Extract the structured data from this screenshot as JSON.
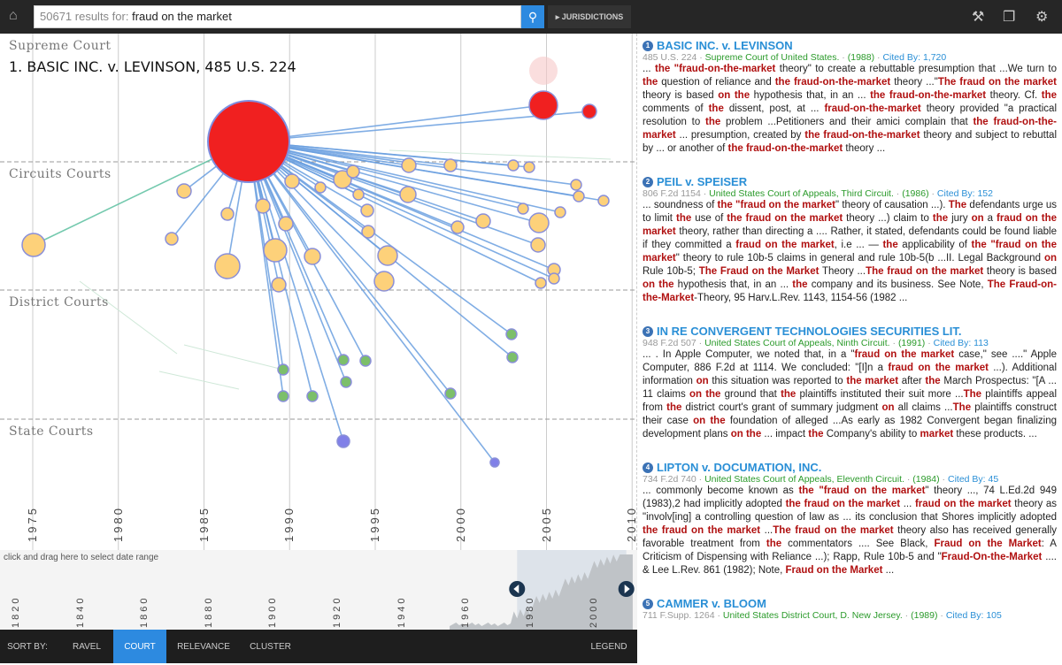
{
  "header": {
    "result_count": "50671 results for:",
    "query": "fraud on the market",
    "jurisdictions_label": "JURISDICTIONS"
  },
  "graph": {
    "lanes": [
      "Supreme Court",
      "Circuits Courts",
      "District Courts",
      "State Courts"
    ],
    "selected_title": "1. BASIC INC. v. LEVINSON, 485 U.S. 224",
    "years": [
      "1975",
      "1980",
      "1985",
      "1990",
      "1995",
      "2000",
      "2005",
      "2010"
    ]
  },
  "timeline": {
    "hint": "click and drag here to select date range",
    "years": [
      "1820",
      "1840",
      "1860",
      "1880",
      "1900",
      "1920",
      "1940",
      "1960",
      "1980",
      "2000"
    ],
    "selected_range": [
      1976,
      2010
    ]
  },
  "sort": {
    "label": "SORT BY:",
    "options": [
      "RAVEL",
      "COURT",
      "RELEVANCE",
      "CLUSTER"
    ],
    "active": "COURT",
    "legend": "LEGEND"
  },
  "colors": {
    "accent": "#2d8ae0",
    "supreme": "#f02020",
    "circuit": "#fdd17a",
    "district": "#7cbf6a",
    "state": "#8080e8",
    "highlight": "#b01010"
  },
  "results": [
    {
      "num": "1",
      "title": "BASIC INC. v. LEVINSON",
      "cite": "485 U.S. 224",
      "court": "Supreme Court of United States.",
      "year": "(1988)",
      "cited": "Cited By: 1,720",
      "snippet": [
        "... ",
        "the \"fraud-on-the-market",
        " theory\" to create a rebuttable presumption that ...We turn to ",
        "the",
        " question of reliance and ",
        "the fraud-on-the-market",
        " theory ...\"",
        "The fraud on the market",
        " theory is based ",
        "on the",
        " hypothesis that, in an ... ",
        "the fraud-on-the-market",
        " theory. Cf. ",
        "the",
        " comments of ",
        "the",
        " dissent, post, at ... ",
        "fraud-on-the-market",
        " theory provided \"a practical resolution to ",
        "the",
        " problem ...Petitioners and their amici complain that ",
        "the fraud-on-the-market",
        " ... presumption, created by ",
        "the fraud-on-the-market",
        " theory and subject to rebuttal by ... or another of ",
        "the fraud-on-the-market",
        " theory ..."
      ]
    },
    {
      "num": "2",
      "title": "PEIL v. SPEISER",
      "cite": "806 F.2d 1154",
      "court": "United States Court of Appeals, Third Circuit.",
      "year": "(1986)",
      "cited": "Cited By: 152",
      "snippet": [
        "... soundness of ",
        "the \"fraud on the market",
        "\" theory of causation ...). ",
        "The",
        " defendants urge us to limit ",
        "the",
        " use of ",
        "the fraud on the market",
        " theory ...) claim to ",
        "the",
        " jury ",
        "on",
        " a ",
        "fraud on the market",
        " theory, rather than directing a .... Rather, it stated, defendants could be found liable if they committed a ",
        "fraud on the market",
        ", i.e ... — ",
        "the",
        " applicability of ",
        "the \"fraud on the market",
        "\" theory to rule 10b-5 claims in general and rule 10b-5(b ...II. Legal Background ",
        "on",
        " Rule 10b-5; ",
        "The Fraud on the Market",
        " Theory ...",
        "The fraud on the market",
        " theory is based ",
        "on the",
        " hypothesis that, in an ... ",
        "the",
        " company and its business. See Note, ",
        "The Fraud-on-the-Market",
        "-Theory, 95 Harv.L.Rev. 1143, 1154-56 (1982 ..."
      ]
    },
    {
      "num": "3",
      "title": "IN RE CONVERGENT TECHNOLOGIES SECURITIES LIT.",
      "cite": "948 F.2d 507",
      "court": "United States Court of Appeals, Ninth Circuit.",
      "year": "(1991)",
      "cited": "Cited By: 113",
      "snippet": [
        "... . In Apple Computer, we noted that, in a \"",
        "fraud on the market",
        " case,\" see ....\" Apple Computer, 886 F.2d at 1114. We concluded: \"[I]n a ",
        "fraud on the market",
        " ...). Additional information ",
        "on",
        " this situation was reported to ",
        "the market",
        " after ",
        "the",
        " March Prospectus: \"[A ... 11 claims ",
        "on the",
        " ground that ",
        "the",
        " plaintiffs instituted their suit more ...",
        "The",
        " plaintiffs appeal from ",
        "the",
        " district court's grant of summary judgment ",
        "on",
        " all claims ...",
        "The",
        " plaintiffs construct their case ",
        "on the",
        " foundation of alleged ...As early as 1982 Convergent began finalizing development plans ",
        "on the",
        " ... impact ",
        "the",
        " Company's ability to ",
        "market",
        " these products. ..."
      ]
    },
    {
      "num": "4",
      "title": "LIPTON v. DOCUMATION, INC.",
      "cite": "734 F.2d 740",
      "court": "United States Court of Appeals, Eleventh Circuit.",
      "year": "(1984)",
      "cited": "Cited By: 45",
      "snippet": [
        "... commonly become known as ",
        "the \"fraud on the market",
        "\" theory ..., 74 L.Ed.2d 949 (1983),2 had implicitly adopted ",
        "the fraud on the market",
        " ... ",
        "fraud on the market",
        " theory as \"involv[ing] a controlling question of law as ... its conclusion that Shores implicitly adopted ",
        "the fraud on the market",
        " ...",
        "The fraud on the market",
        " theory also has received generally favorable treatment from ",
        "the",
        " commentators .... See Black, ",
        "Fraud on the Market",
        ": A Criticism of Dispensing with Reliance ...); Rapp, Rule 10b-5 and \"",
        "Fraud-On-the-Market",
        " .... & Lee L.Rev. 861 (1982); Note, ",
        "Fraud on the Market",
        " ..."
      ]
    },
    {
      "num": "5",
      "title": "CAMMER v. BLOOM",
      "cite": "711 F.Supp. 1264",
      "court": "United States District Court, D. New Jersey.",
      "year": "(1989)",
      "cited": "Cited By: 105",
      "snippet": []
    }
  ]
}
